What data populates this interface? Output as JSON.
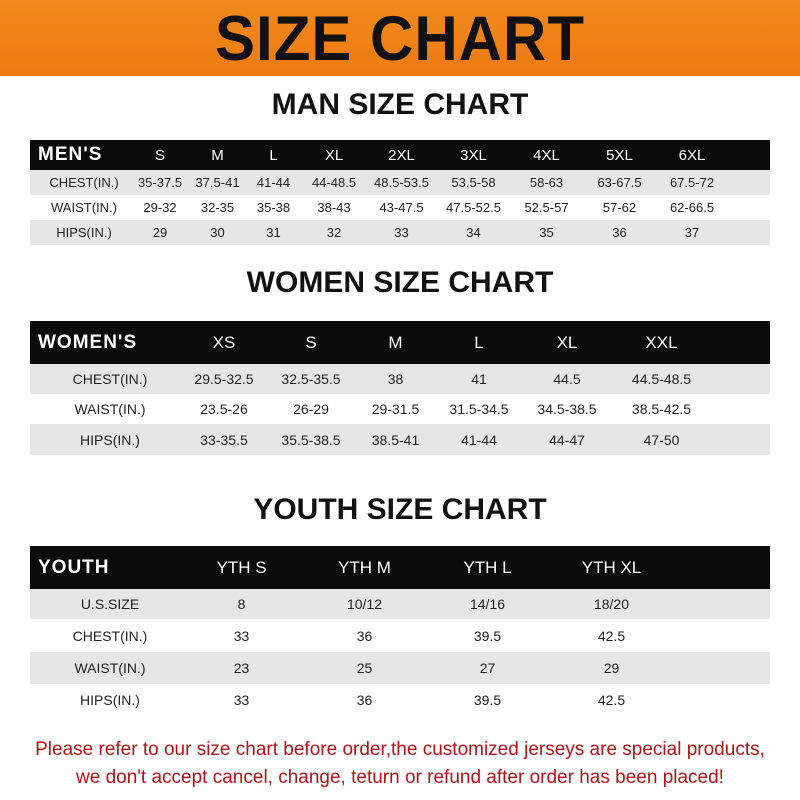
{
  "title": "SIZE CHART",
  "men": {
    "heading": "MAN SIZE CHART",
    "corner": "MEN'S",
    "sizes": [
      "S",
      "M",
      "L",
      "XL",
      "2XL",
      "3XL",
      "4XL",
      "5XL",
      "6XL"
    ],
    "rows": [
      {
        "label": "CHEST(IN.)",
        "values": [
          "35-37.5",
          "37.5-41",
          "41-44",
          "44-48.5",
          "48.5-53.5",
          "53.5-58",
          "58-63",
          "63-67.5",
          "67.5-72"
        ]
      },
      {
        "label": "WAIST(IN.)",
        "values": [
          "29-32",
          "32-35",
          "35-38",
          "38-43",
          "43-47.5",
          "47.5-52.5",
          "52.5-57",
          "57-62",
          "62-66.5"
        ]
      },
      {
        "label": "HIPS(IN.)",
        "values": [
          "29",
          "30",
          "31",
          "32",
          "33",
          "34",
          "35",
          "36",
          "37"
        ]
      }
    ]
  },
  "women": {
    "heading": "WOMEN SIZE CHART",
    "corner": "WOMEN'S",
    "sizes": [
      "XS",
      "S",
      "M",
      "L",
      "XL",
      "XXL"
    ],
    "rows": [
      {
        "label": "CHEST(IN.)",
        "values": [
          "29.5-32.5",
          "32.5-35.5",
          "38",
          "41",
          "44.5",
          "44.5-48.5"
        ]
      },
      {
        "label": "WAIST(IN.)",
        "values": [
          "23.5-26",
          "26-29",
          "29-31.5",
          "31.5-34.5",
          "34.5-38.5",
          "38.5-42.5"
        ]
      },
      {
        "label": "HIPS(IN.)",
        "values": [
          "33-35.5",
          "35.5-38.5",
          "38.5-41",
          "41-44",
          "44-47",
          "47-50"
        ]
      }
    ]
  },
  "youth": {
    "heading": "YOUTH SIZE CHART",
    "corner": "YOUTH",
    "sizes": [
      "YTH S",
      "YTH M",
      "YTH L",
      "YTH XL"
    ],
    "rows": [
      {
        "label": "U.S.SIZE",
        "values": [
          "8",
          "10/12",
          "14/16",
          "18/20"
        ]
      },
      {
        "label": "CHEST(IN.)",
        "values": [
          "33",
          "36",
          "39.5",
          "42.5"
        ]
      },
      {
        "label": "WAIST(IN.)",
        "values": [
          "23",
          "25",
          "27",
          "29"
        ]
      },
      {
        "label": "HIPS(IN.)",
        "values": [
          "33",
          "36",
          "39.5",
          "42.5"
        ]
      }
    ]
  },
  "notice": [
    "Please refer to our size chart before order,the customized jerseys are special products,",
    "we don't accept cancel, change, teturn or refund after order has been placed!"
  ],
  "colors": {
    "banner": "#ef8216",
    "header": "#0b0b0b",
    "stripe": "#e6e6e6",
    "notice": "#b0131a"
  }
}
